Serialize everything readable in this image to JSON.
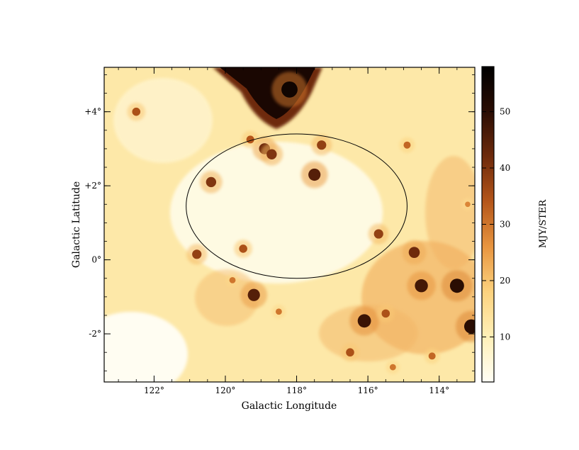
{
  "chart_data": {
    "type": "heatmap",
    "title": "",
    "xlabel": "Galactic Longitude",
    "ylabel": "Galactic Latitude",
    "x_ticks": [
      {
        "value": 122,
        "label": "122°"
      },
      {
        "value": 120,
        "label": "120°"
      },
      {
        "value": 118,
        "label": "118°"
      },
      {
        "value": 116,
        "label": "116°"
      },
      {
        "value": 114,
        "label": "114°"
      }
    ],
    "y_ticks": [
      {
        "value": 4,
        "label": "+4°"
      },
      {
        "value": 2,
        "label": "+2°"
      },
      {
        "value": 0,
        "label": "0°"
      },
      {
        "value": -2,
        "label": "-2°"
      }
    ],
    "xlim": [
      123.4,
      113.0
    ],
    "ylim": [
      -3.3,
      5.2
    ],
    "colorbar": {
      "label": "MJY/STER",
      "range": [
        2,
        58
      ],
      "ticks": [
        {
          "value": 10,
          "label": "10"
        },
        {
          "value": 20,
          "label": "20"
        },
        {
          "value": 30,
          "label": "30"
        },
        {
          "value": 40,
          "label": "40"
        },
        {
          "value": 50,
          "label": "50"
        }
      ],
      "colors": [
        "#fffef5",
        "#fff0b8",
        "#fcd27e",
        "#e89540",
        "#b5561a",
        "#6e2a0c",
        "#2a0d03",
        "#000000"
      ]
    },
    "overlay_ellipse": {
      "center_lon": 118.0,
      "center_lat": 1.45,
      "semi_axis_lon": 3.1,
      "semi_axis_lat": 1.95
    },
    "bright_features": [
      {
        "lon": 118.2,
        "lat": 4.6,
        "value": 55
      },
      {
        "lon": 117.5,
        "lat": 2.3,
        "value": 45
      },
      {
        "lon": 120.4,
        "lat": 2.1,
        "value": 40
      },
      {
        "lon": 118.9,
        "lat": 3.0,
        "value": 42
      },
      {
        "lon": 118.7,
        "lat": 2.85,
        "value": 40
      },
      {
        "lon": 117.3,
        "lat": 3.1,
        "value": 38
      },
      {
        "lon": 119.5,
        "lat": 0.3,
        "value": 35
      },
      {
        "lon": 120.8,
        "lat": 0.15,
        "value": 38
      },
      {
        "lon": 119.2,
        "lat": -0.95,
        "value": 45
      },
      {
        "lon": 116.1,
        "lat": -1.65,
        "value": 48
      },
      {
        "lon": 115.5,
        "lat": -1.45,
        "value": 35
      },
      {
        "lon": 114.5,
        "lat": -0.7,
        "value": 47
      },
      {
        "lon": 113.5,
        "lat": -0.7,
        "value": 50
      },
      {
        "lon": 114.7,
        "lat": 0.2,
        "value": 42
      },
      {
        "lon": 113.1,
        "lat": -1.8,
        "value": 50
      },
      {
        "lon": 115.7,
        "lat": 0.7,
        "value": 38
      },
      {
        "lon": 119.8,
        "lat": -0.55,
        "value": 30
      },
      {
        "lon": 118.5,
        "lat": -1.4,
        "value": 30
      },
      {
        "lon": 114.9,
        "lat": 3.1,
        "value": 32
      },
      {
        "lon": 116.5,
        "lat": -2.5,
        "value": 35
      },
      {
        "lon": 114.2,
        "lat": -2.6,
        "value": 32
      },
      {
        "lon": 122.5,
        "lat": 4.0,
        "value": 35
      },
      {
        "lon": 119.3,
        "lat": 3.25,
        "value": 34
      },
      {
        "lon": 115.3,
        "lat": -2.9,
        "value": 30
      },
      {
        "lon": 113.2,
        "lat": 1.5,
        "value": 28
      }
    ]
  }
}
